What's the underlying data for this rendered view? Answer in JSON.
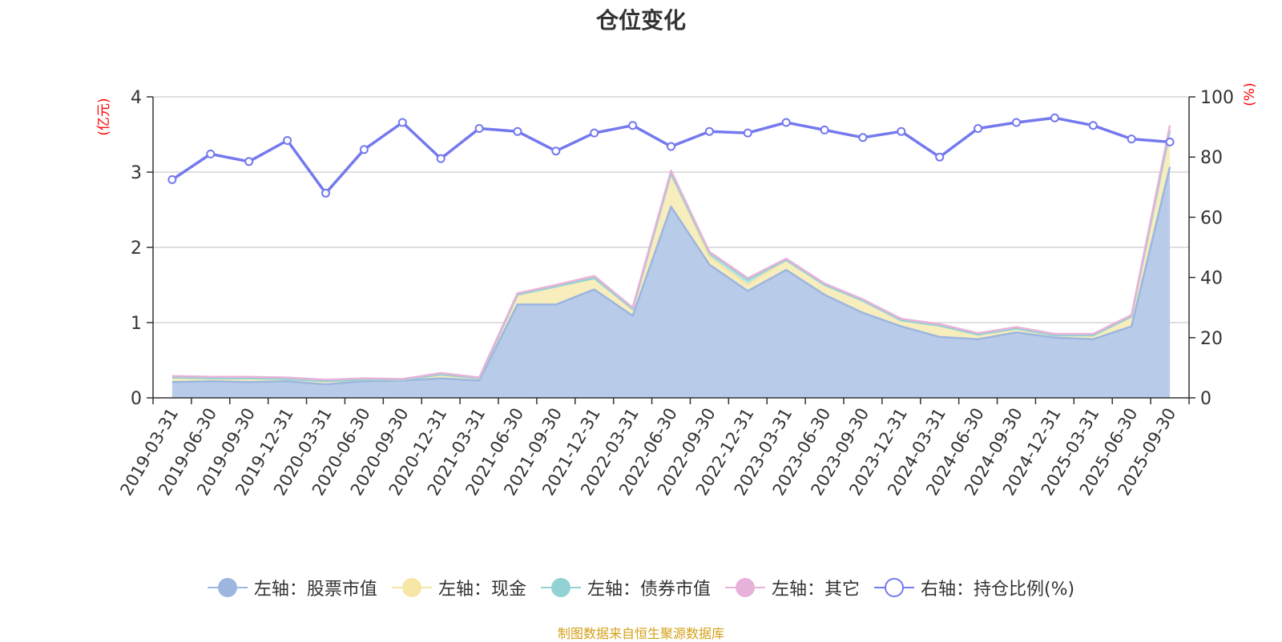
{
  "chart_data": {
    "type": "area",
    "title": "仓位变化",
    "y_left_label": "(亿元)",
    "y_right_label": "(%)",
    "y_left_lim": [
      0,
      4
    ],
    "y_left_ticks": [
      "0",
      "1",
      "2",
      "3",
      "4"
    ],
    "y_right_lim": [
      0,
      100
    ],
    "y_right_ticks": [
      "0",
      "20",
      "40",
      "60",
      "80",
      "100"
    ],
    "grid": true,
    "legend_position": "bottom",
    "categories": [
      "2019-03-31",
      "2019-06-30",
      "2019-09-30",
      "2019-12-31",
      "2020-03-31",
      "2020-06-30",
      "2020-09-30",
      "2020-12-31",
      "2021-03-31",
      "2021-06-30",
      "2021-09-30",
      "2021-12-31",
      "2022-03-31",
      "2022-06-30",
      "2022-09-30",
      "2022-12-31",
      "2023-03-31",
      "2023-06-30",
      "2023-09-30",
      "2023-12-31",
      "2024-03-31",
      "2024-06-30",
      "2024-09-30",
      "2024-12-31",
      "2025-03-31",
      "2025-06-30",
      "2025-09-30"
    ],
    "series": [
      {
        "name": "左轴：股票市值",
        "axis": "left",
        "stacked": true,
        "color": "#9cb6e0",
        "fill": "#b8cbe9",
        "values": [
          0.21,
          0.22,
          0.21,
          0.22,
          0.18,
          0.22,
          0.23,
          0.26,
          0.23,
          1.24,
          1.24,
          1.44,
          1.09,
          2.54,
          1.77,
          1.42,
          1.7,
          1.37,
          1.13,
          0.95,
          0.81,
          0.78,
          0.87,
          0.8,
          0.78,
          0.95,
          3.07
        ]
      },
      {
        "name": "左轴：现金",
        "axis": "left",
        "stacked": true,
        "color": "#f6e7a6",
        "fill": "#f8edbc",
        "values": [
          0.06,
          0.04,
          0.05,
          0.03,
          0.04,
          0.02,
          0.01,
          0.05,
          0.03,
          0.13,
          0.24,
          0.15,
          0.09,
          0.44,
          0.1,
          0.08,
          0.13,
          0.13,
          0.16,
          0.08,
          0.15,
          0.06,
          0.05,
          0.03,
          0.05,
          0.13,
          0.48
        ]
      },
      {
        "name": "左轴：债券市值",
        "axis": "left",
        "stacked": true,
        "color": "#92d2d4",
        "fill": "#b9e2e3",
        "values": [
          0,
          0,
          0,
          0,
          0,
          0,
          0,
          0,
          0,
          0,
          0,
          0,
          0,
          0,
          0.05,
          0.07,
          0,
          0,
          0,
          0,
          0,
          0,
          0,
          0,
          0,
          0,
          0
        ]
      },
      {
        "name": "左轴：其它",
        "axis": "left",
        "stacked": true,
        "color": "#e7b2d9",
        "fill": "#f2d6eb",
        "values": [
          0.02,
          0.02,
          0.02,
          0.02,
          0.02,
          0.02,
          0.01,
          0.02,
          0.01,
          0.02,
          0.02,
          0.03,
          0.02,
          0.04,
          0.02,
          0.02,
          0.02,
          0.02,
          0.02,
          0.02,
          0.02,
          0.02,
          0.02,
          0.02,
          0.02,
          0.02,
          0.07
        ]
      },
      {
        "name": "右轴：持仓比例(%)",
        "axis": "right",
        "type": "line",
        "color": "#7479ee",
        "values": [
          72.5,
          81,
          78.5,
          85.5,
          68,
          82.5,
          91.5,
          79.5,
          89.5,
          88.5,
          82,
          88,
          90.5,
          83.5,
          88.5,
          88,
          91.5,
          89,
          86.5,
          88.5,
          80,
          89.5,
          91.5,
          93,
          90.5,
          86,
          85
        ]
      }
    ]
  },
  "source_text": "制图数据来自恒生聚源数据库"
}
